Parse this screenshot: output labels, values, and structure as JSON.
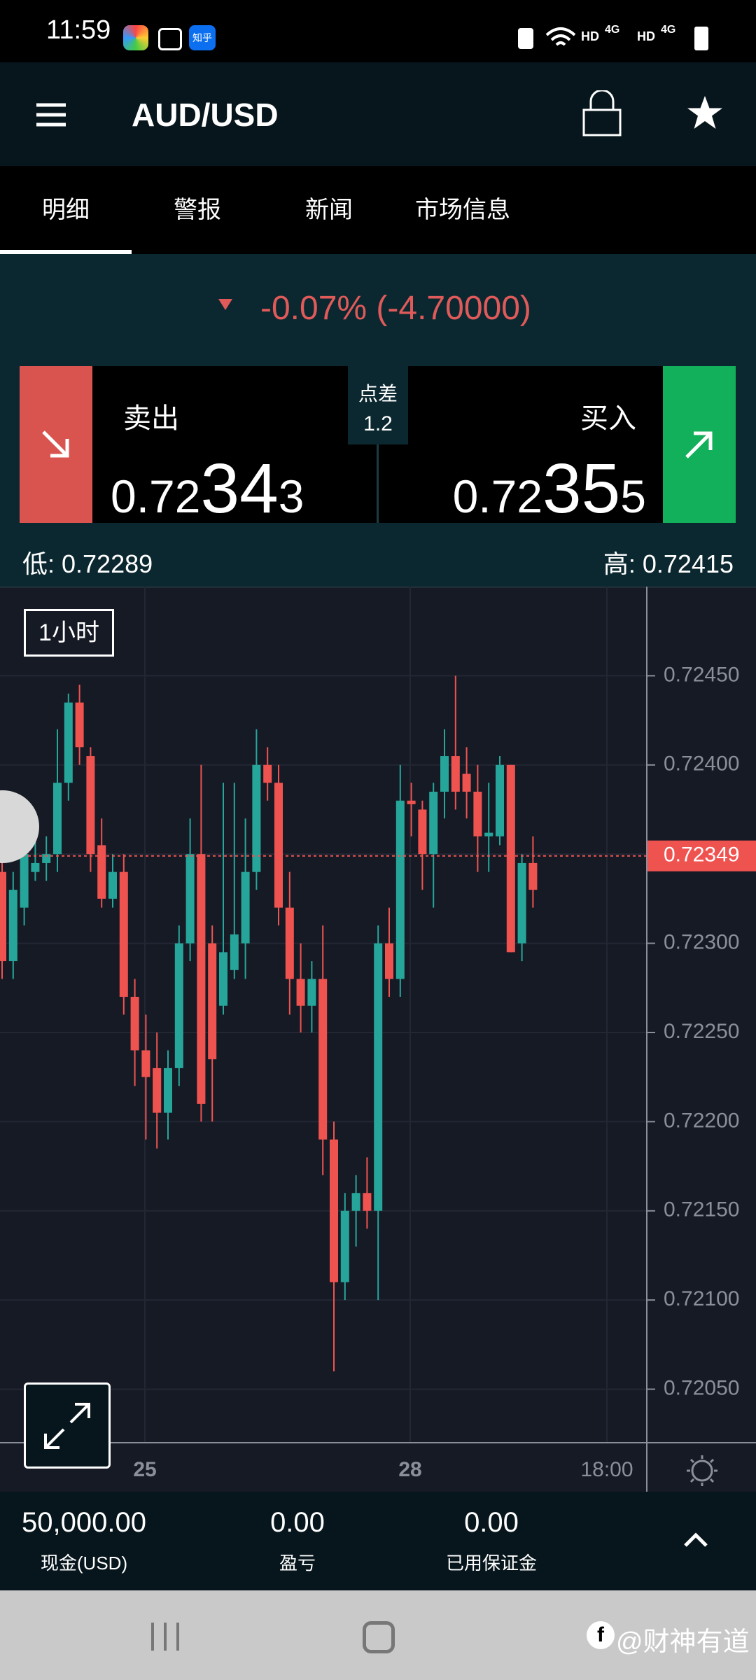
{
  "status_bar": {
    "time": "11:59",
    "net1": "HD",
    "net2": "4G",
    "net3": "HD",
    "net4": "4G",
    "app_badge": "知乎"
  },
  "header": {
    "title": "AUD/USD"
  },
  "tabs": [
    "明细",
    "警报",
    "新闻",
    "市场信息"
  ],
  "change": "-0.07% (-4.70000)",
  "sell": {
    "label": "卖出",
    "price_parts": [
      "0.72",
      "34",
      "3"
    ]
  },
  "buy": {
    "label": "买入",
    "price_parts": [
      "0.72",
      "35",
      "5"
    ]
  },
  "spread": {
    "label": "点差",
    "value": "1.2"
  },
  "low": "低: 0.72289",
  "high": "高: 0.72415",
  "chart": {
    "type": "candlestick",
    "timeframe": "1小时",
    "open": [
      0.7234,
      0.7229,
      0.7232,
      0.7234,
      0.72345,
      0.7235,
      0.7239,
      0.72435,
      0.72405,
      0.72355,
      0.72325,
      0.7234,
      0.7227,
      0.7224,
      0.7223,
      0.72205,
      0.7223,
      0.723,
      0.7235,
      0.723,
      0.72265,
      0.72285,
      0.723,
      0.7234,
      0.724,
      0.7239,
      0.7232,
      0.7228,
      0.72265,
      0.7228,
      0.7219,
      0.7211,
      0.7215,
      0.7216,
      0.7215,
      0.723,
      0.7228,
      0.7238,
      0.72375,
      0.7235,
      0.72385,
      0.72405,
      0.72395,
      0.72385,
      0.7236,
      0.7236,
      0.724,
      0.723,
      0.72345
    ],
    "high": [
      0.7235,
      0.7234,
      0.7236,
      0.7236,
      0.7236,
      0.7242,
      0.7244,
      0.72445,
      0.7241,
      0.7237,
      0.7235,
      0.7235,
      0.7228,
      0.7226,
      0.7225,
      0.7224,
      0.7231,
      0.7237,
      0.724,
      0.7231,
      0.7239,
      0.7239,
      0.7237,
      0.7242,
      0.7241,
      0.724,
      0.7234,
      0.723,
      0.7229,
      0.7231,
      0.722,
      0.7216,
      0.7217,
      0.7218,
      0.7231,
      0.7232,
      0.724,
      0.7239,
      0.7238,
      0.7239,
      0.7242,
      0.7245,
      0.7241,
      0.724,
      0.7239,
      0.72405,
      0.724,
      0.7235,
      0.7236
    ],
    "low": [
      0.7228,
      0.7228,
      0.7231,
      0.72335,
      0.72335,
      0.7234,
      0.7238,
      0.724,
      0.7234,
      0.7232,
      0.7232,
      0.7226,
      0.7222,
      0.7219,
      0.72185,
      0.7219,
      0.7222,
      0.7229,
      0.722,
      0.722,
      0.7226,
      0.7228,
      0.7228,
      0.7233,
      0.7238,
      0.7231,
      0.7226,
      0.7225,
      0.7225,
      0.7217,
      0.7206,
      0.721,
      0.7213,
      0.7214,
      0.721,
      0.7227,
      0.7227,
      0.7236,
      0.7233,
      0.7232,
      0.7237,
      0.72375,
      0.7237,
      0.7234,
      0.7234,
      0.72355,
      0.72295,
      0.7229,
      0.7232
    ],
    "close": [
      0.7229,
      0.7233,
      0.7235,
      0.72345,
      0.7235,
      0.7239,
      0.72435,
      0.7241,
      0.7235,
      0.72325,
      0.7234,
      0.7227,
      0.7224,
      0.72225,
      0.72205,
      0.7223,
      0.723,
      0.7235,
      0.7221,
      0.72235,
      0.72295,
      0.72305,
      0.7234,
      0.724,
      0.7239,
      0.7232,
      0.7228,
      0.72265,
      0.7228,
      0.7219,
      0.7211,
      0.7215,
      0.7216,
      0.7215,
      0.723,
      0.7228,
      0.7238,
      0.72378,
      0.7235,
      0.72385,
      0.72405,
      0.72385,
      0.72385,
      0.7236,
      0.72362,
      0.724,
      0.72295,
      0.72345,
      0.7233
    ],
    "up_color": "#26a69a",
    "down_color": "#ef5350",
    "ylim": [
      0.7202,
      0.725
    ],
    "yticks": [
      {
        "value": 0.7245,
        "label": "0.72450"
      },
      {
        "value": 0.724,
        "label": "0.72400"
      },
      {
        "value": 0.7235,
        "label": "0.72350"
      },
      {
        "value": 0.723,
        "label": "0.72300"
      },
      {
        "value": 0.7225,
        "label": "0.72250"
      },
      {
        "value": 0.722,
        "label": "0.72200"
      },
      {
        "value": 0.7215,
        "label": "0.72150"
      },
      {
        "value": 0.721,
        "label": "0.72100"
      },
      {
        "value": 0.7205,
        "label": "0.72050"
      }
    ],
    "xtick_labels": [
      "25",
      "28",
      "18:00"
    ],
    "current_price": 0.72349,
    "grid": true
  },
  "account": [
    {
      "value": "50,000.00",
      "label": "现金(USD)"
    },
    {
      "value": "0.00",
      "label": "盈亏"
    },
    {
      "value": "0.00",
      "label": "已用保证金"
    }
  ],
  "watermark": "@财神有道"
}
